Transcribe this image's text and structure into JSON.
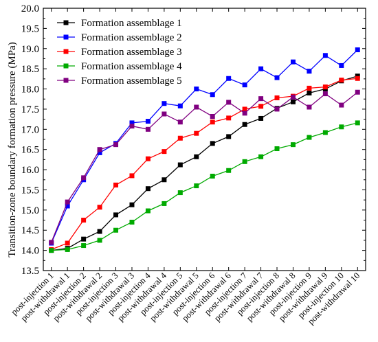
{
  "chart_data": {
    "type": "line",
    "title": "",
    "xlabel": "",
    "ylabel": "Transition-zone boundary formation pressure (MPa)",
    "ylim": [
      13.5,
      20.0
    ],
    "yticks": [
      "13.5",
      "14.0",
      "14.5",
      "15.0",
      "15.5",
      "16.0",
      "16.5",
      "17.0",
      "17.5",
      "18.0",
      "18.5",
      "19.0",
      "19.5",
      "20.0"
    ],
    "grid": false,
    "legend_position": "top-left",
    "categories": [
      "post-injection 1",
      "post-withdrawal 1",
      "post-injection 2",
      "post-withdrawal 2",
      "post-injection 3",
      "post-withdrawal 3",
      "post-injection 4",
      "post-withdrawal 4",
      "post-injection 5",
      "post-withdrawal 5",
      "post-injection 6",
      "post-withdrawal 6",
      "post-injection 7",
      "post-withdrawal 7",
      "post-injection 8",
      "post-withdrawal 8",
      "post-injection 9",
      "post-withdrawal 9",
      "post-injection 10",
      "post-withdrawal 10"
    ],
    "series": [
      {
        "name": "Formation assemblage 1",
        "color": "#000000",
        "values": [
          14.0,
          14.05,
          14.28,
          14.47,
          14.88,
          15.13,
          15.53,
          15.75,
          16.12,
          16.32,
          16.65,
          16.82,
          17.12,
          17.27,
          17.52,
          17.68,
          17.9,
          18.0,
          18.2,
          18.32
        ]
      },
      {
        "name": "Formation assemblage 2",
        "color": "#0000ff",
        "values": [
          14.18,
          15.1,
          15.75,
          16.42,
          16.65,
          17.16,
          17.2,
          17.64,
          17.58,
          18.0,
          17.86,
          18.26,
          18.1,
          18.5,
          18.28,
          18.67,
          18.44,
          18.83,
          18.58,
          18.97
        ]
      },
      {
        "name": "Formation assemblage 3",
        "color": "#ff0000",
        "values": [
          14.02,
          14.18,
          14.75,
          15.07,
          15.62,
          15.85,
          16.27,
          16.45,
          16.78,
          16.9,
          17.18,
          17.28,
          17.5,
          17.57,
          17.78,
          17.82,
          18.02,
          18.05,
          18.22,
          18.26
        ]
      },
      {
        "name": "Formation assemblage 4",
        "color": "#00aa00",
        "values": [
          14.0,
          14.02,
          14.12,
          14.25,
          14.5,
          14.7,
          14.98,
          15.16,
          15.43,
          15.6,
          15.84,
          15.98,
          16.2,
          16.32,
          16.52,
          16.62,
          16.8,
          16.92,
          17.06,
          17.16
        ]
      },
      {
        "name": "Formation assemblage 5",
        "color": "#800080",
        "values": [
          14.2,
          15.2,
          15.8,
          16.5,
          16.62,
          17.08,
          17.0,
          17.38,
          17.18,
          17.55,
          17.32,
          17.67,
          17.4,
          17.76,
          17.5,
          17.8,
          17.55,
          17.88,
          17.6,
          17.92
        ]
      }
    ]
  }
}
